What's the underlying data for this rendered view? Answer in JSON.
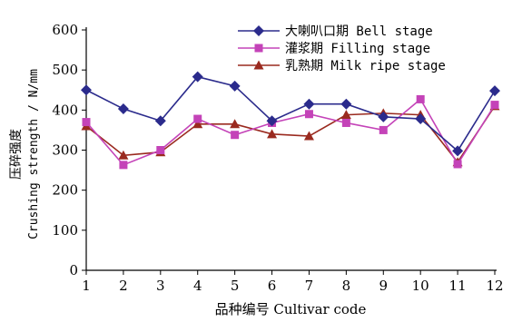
{
  "chart_data": {
    "type": "line",
    "x": [
      1,
      2,
      3,
      4,
      5,
      6,
      7,
      8,
      9,
      10,
      11,
      12
    ],
    "xlabel": "品种编号 Cultivar code",
    "ylabel_cn": "压碎强度",
    "ylabel_en": "Crushing strength / N/mm",
    "ylim": [
      0,
      600
    ],
    "yticks": [
      0,
      100,
      200,
      300,
      400,
      500,
      600
    ],
    "grid": false,
    "legend_position": "top-right",
    "series": [
      {
        "name": "大喇叭口期 Bell stage",
        "marker": "diamond",
        "color": "#2b2b8c",
        "values": [
          450,
          403,
          373,
          483,
          460,
          373,
          415,
          415,
          383,
          378,
          298,
          448
        ]
      },
      {
        "name": "灌浆期 Filling stage",
        "marker": "square",
        "color": "#c443b8",
        "values": [
          370,
          263,
          300,
          378,
          338,
          368,
          390,
          368,
          350,
          427,
          265,
          413
        ]
      },
      {
        "name": "乳熟期 Milk ripe stage",
        "marker": "triangle",
        "color": "#9a2a1f",
        "values": [
          360,
          287,
          295,
          365,
          365,
          340,
          335,
          388,
          392,
          388,
          270,
          410
        ]
      }
    ]
  }
}
